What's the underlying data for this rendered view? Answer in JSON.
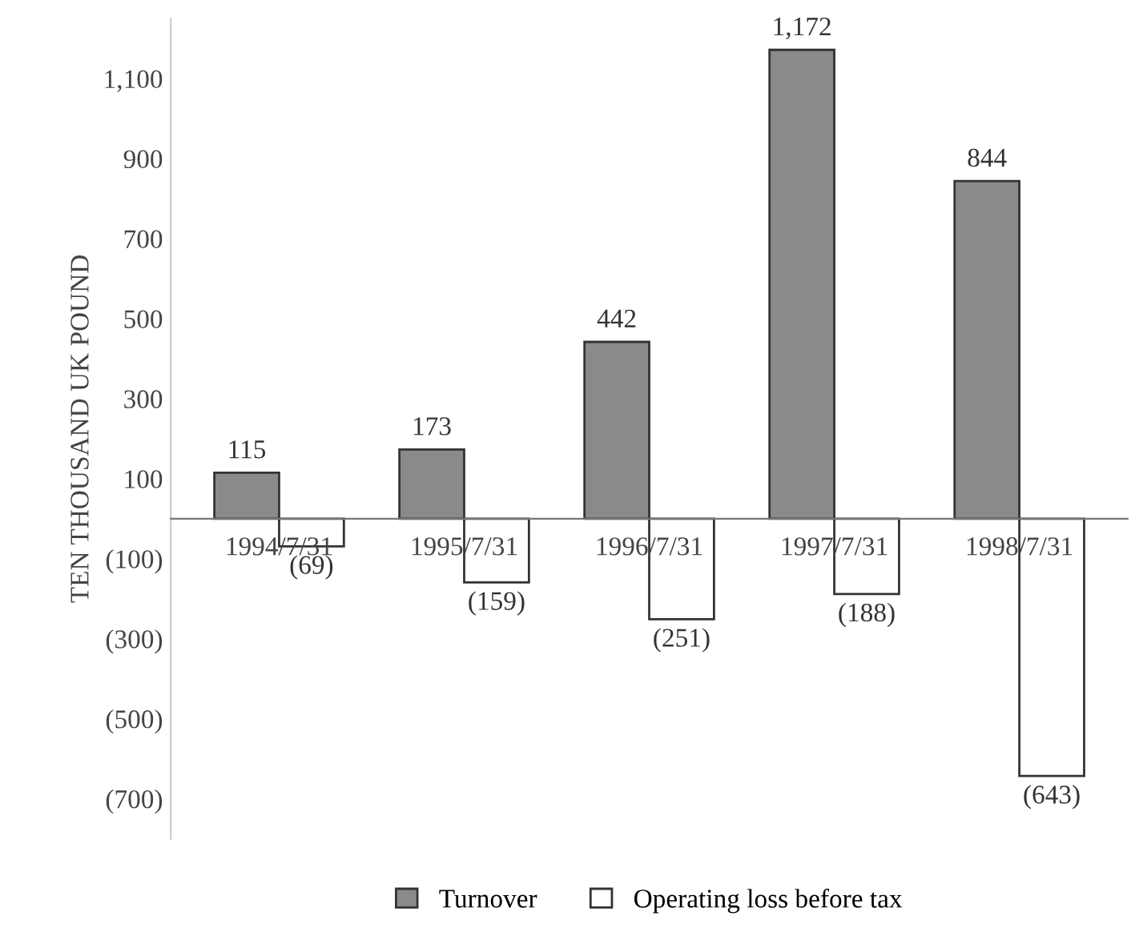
{
  "chart_data": {
    "type": "bar",
    "ylabel": "TEN THOUSAND UK POUND",
    "categories": [
      "1994/7/31",
      "1995/7/31",
      "1996/7/31",
      "1997/7/31",
      "1998/7/31"
    ],
    "series": [
      {
        "name": "Turnover",
        "color": "#8a8a8a",
        "values": [
          115,
          173,
          442,
          1172,
          844
        ],
        "value_labels": [
          "115",
          "173",
          "442",
          "1,172",
          "844"
        ]
      },
      {
        "name": "Operating loss before tax",
        "color": "#ffffff",
        "values": [
          -69,
          -159,
          -251,
          -188,
          -643
        ],
        "value_labels": [
          "(69)",
          "(159)",
          "(251)",
          "(188)",
          "(643)"
        ]
      }
    ],
    "ylim": [
      -800,
      1250
    ],
    "yticks": [
      {
        "value": -700,
        "label": "(700)"
      },
      {
        "value": -500,
        "label": "(500)"
      },
      {
        "value": -300,
        "label": "(300)"
      },
      {
        "value": -100,
        "label": "(100)"
      },
      100,
      300,
      500,
      700,
      900,
      {
        "value": 1100,
        "label": "1,100"
      }
    ],
    "grid": false,
    "legend": "bottom"
  }
}
